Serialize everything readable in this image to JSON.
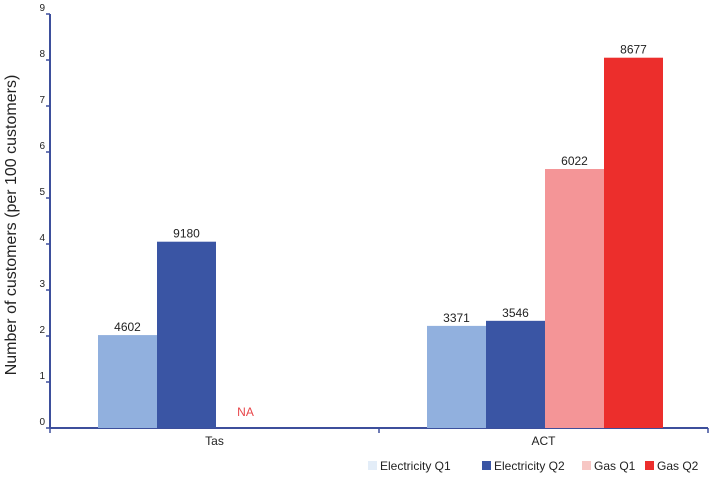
{
  "chart_data": {
    "type": "bar",
    "categories": [
      "Tas",
      "ACT"
    ],
    "ylabel": "Number of customers (per 100 customers)",
    "xlabel": "",
    "ylim": [
      0,
      9
    ],
    "yticks": [
      0,
      1,
      2,
      3,
      4,
      5,
      6,
      7,
      8,
      9
    ],
    "grid": false,
    "legend_position": "bottom-right",
    "series": [
      {
        "name": "Electricity Q1",
        "color": "#91b0de",
        "legend_color": "#e3edf8",
        "values": [
          2.02,
          2.22
        ],
        "labels": [
          "4602",
          "3371"
        ]
      },
      {
        "name": "Electricity Q2",
        "color": "#3a55a4",
        "legend_color": "#3a55a4",
        "values": [
          4.05,
          2.33
        ],
        "labels": [
          "9180",
          "3546"
        ]
      },
      {
        "name": "Gas Q1",
        "color": "#f49597",
        "legend_color": "#f7c7c4",
        "values": [
          null,
          5.63
        ],
        "labels": [
          "NA",
          "6022"
        ]
      },
      {
        "name": "Gas Q2",
        "color": "#ec2e2c",
        "legend_color": "#ec2e2c",
        "values": [
          null,
          8.05
        ],
        "labels": [
          "",
          "8677"
        ]
      }
    ],
    "na_color": "#e8464a",
    "axis_color": "#3d4f9c"
  }
}
